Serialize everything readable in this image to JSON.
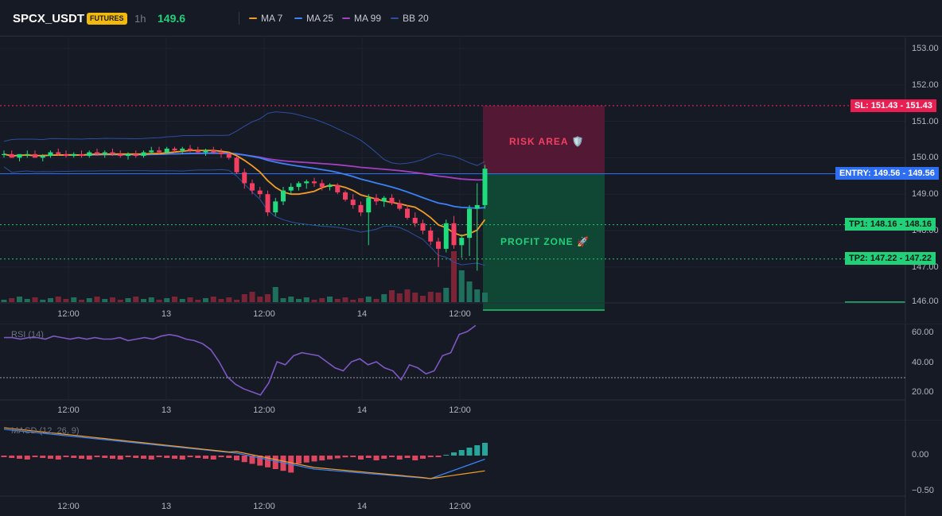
{
  "header": {
    "symbol": "SPCX_USDT",
    "badge": "FUTURES",
    "interval": "1h",
    "last_price": "149.6",
    "indicators": [
      {
        "label": "MA 7",
        "color": "#f39c25"
      },
      {
        "label": "MA 25",
        "color": "#3b82f6"
      },
      {
        "label": "MA 99",
        "color": "#a43fc1"
      },
      {
        "label": "BB 20",
        "color": "#2c4fa0"
      }
    ]
  },
  "colors": {
    "up": "#1fdc7c",
    "down": "#f23f62",
    "volume_up": "#1e6f5c",
    "volume_down": "#7a2436",
    "sl": "#ff1f5a",
    "entry": "#2e6ef2",
    "tp": "#22c76a",
    "rsi": "#7e57c2"
  },
  "price_pane": {
    "y_axis": [
      "153.00",
      "152.00",
      "151.00",
      "150.00",
      "149.00",
      "148.00",
      "147.00",
      "146.00"
    ],
    "sl_tag": "SL: 151.43 - 151.43",
    "entry_tag": "ENTRY: 149.56 - 149.56",
    "tp1_tag": "TP1: 148.16 - 148.16",
    "tp2_tag": "TP2: 147.22 - 147.22",
    "risk_label": "RISK AREA 🛡️",
    "profit_label": "PROFIT ZONE 🚀"
  },
  "time_axis": [
    "12:00",
    "13",
    "12:00",
    "14",
    "12:00"
  ],
  "rsi_pane": {
    "title": "RSI (14)",
    "y_axis": [
      "60.00",
      "40.00",
      "20.00"
    ]
  },
  "macd_pane": {
    "title": "MACD (12, 26, 9)",
    "y_axis": [
      "0.00",
      "−0.50"
    ]
  },
  "chart_data": {
    "type": "line",
    "ylim": [
      146,
      153.2
    ],
    "candles": [
      {
        "o": 150.1,
        "h": 150.2,
        "l": 150.0,
        "c": 150.1
      },
      {
        "o": 150.1,
        "h": 150.2,
        "l": 150.0,
        "c": 150.0
      },
      {
        "o": 150.0,
        "h": 150.1,
        "l": 149.9,
        "c": 150.1
      },
      {
        "o": 150.1,
        "h": 150.2,
        "l": 150.0,
        "c": 150.1
      },
      {
        "o": 150.1,
        "h": 150.2,
        "l": 150.0,
        "c": 150.0
      },
      {
        "o": 150.0,
        "h": 150.1,
        "l": 149.9,
        "c": 150.05
      },
      {
        "o": 150.05,
        "h": 150.2,
        "l": 150.0,
        "c": 150.15
      },
      {
        "o": 150.15,
        "h": 150.25,
        "l": 150.05,
        "c": 150.1
      },
      {
        "o": 150.1,
        "h": 150.2,
        "l": 150.0,
        "c": 150.05
      },
      {
        "o": 150.05,
        "h": 150.15,
        "l": 150.0,
        "c": 150.1
      },
      {
        "o": 150.1,
        "h": 150.2,
        "l": 150.0,
        "c": 150.05
      },
      {
        "o": 150.05,
        "h": 150.2,
        "l": 150.0,
        "c": 150.15
      },
      {
        "o": 150.15,
        "h": 150.25,
        "l": 150.05,
        "c": 150.1
      },
      {
        "o": 150.1,
        "h": 150.2,
        "l": 150.0,
        "c": 150.15
      },
      {
        "o": 150.15,
        "h": 150.25,
        "l": 150.05,
        "c": 150.1
      },
      {
        "o": 150.1,
        "h": 150.2,
        "l": 150.0,
        "c": 150.05
      },
      {
        "o": 150.05,
        "h": 150.15,
        "l": 149.95,
        "c": 150.1
      },
      {
        "o": 150.1,
        "h": 150.2,
        "l": 150.0,
        "c": 150.05
      },
      {
        "o": 150.05,
        "h": 150.2,
        "l": 150.0,
        "c": 150.15
      },
      {
        "o": 150.15,
        "h": 150.3,
        "l": 150.1,
        "c": 150.2
      },
      {
        "o": 150.2,
        "h": 150.3,
        "l": 150.1,
        "c": 150.15
      },
      {
        "o": 150.15,
        "h": 150.3,
        "l": 150.1,
        "c": 150.25
      },
      {
        "o": 150.25,
        "h": 150.3,
        "l": 150.15,
        "c": 150.2
      },
      {
        "o": 150.2,
        "h": 150.3,
        "l": 150.1,
        "c": 150.25
      },
      {
        "o": 150.25,
        "h": 150.35,
        "l": 150.15,
        "c": 150.2
      },
      {
        "o": 150.2,
        "h": 150.3,
        "l": 150.1,
        "c": 150.15
      },
      {
        "o": 150.15,
        "h": 150.25,
        "l": 150.05,
        "c": 150.2
      },
      {
        "o": 150.2,
        "h": 150.3,
        "l": 150.1,
        "c": 150.15
      },
      {
        "o": 150.15,
        "h": 150.25,
        "l": 150.0,
        "c": 150.1
      },
      {
        "o": 150.1,
        "h": 150.15,
        "l": 149.95,
        "c": 150.0
      },
      {
        "o": 150.0,
        "h": 150.05,
        "l": 149.55,
        "c": 149.6
      },
      {
        "o": 149.6,
        "h": 149.7,
        "l": 149.15,
        "c": 149.3
      },
      {
        "o": 149.3,
        "h": 149.4,
        "l": 149.0,
        "c": 149.1
      },
      {
        "o": 149.1,
        "h": 149.2,
        "l": 148.9,
        "c": 149.0
      },
      {
        "o": 149.0,
        "h": 149.1,
        "l": 148.4,
        "c": 148.5
      },
      {
        "o": 148.5,
        "h": 148.9,
        "l": 148.4,
        "c": 148.8
      },
      {
        "o": 148.8,
        "h": 149.2,
        "l": 148.7,
        "c": 149.1
      },
      {
        "o": 149.1,
        "h": 149.3,
        "l": 149.0,
        "c": 149.2
      },
      {
        "o": 149.2,
        "h": 149.35,
        "l": 149.1,
        "c": 149.3
      },
      {
        "o": 149.3,
        "h": 149.4,
        "l": 149.15,
        "c": 149.35
      },
      {
        "o": 149.35,
        "h": 149.45,
        "l": 149.2,
        "c": 149.3
      },
      {
        "o": 149.3,
        "h": 149.4,
        "l": 149.1,
        "c": 149.2
      },
      {
        "o": 149.2,
        "h": 149.3,
        "l": 149.1,
        "c": 149.25
      },
      {
        "o": 149.25,
        "h": 149.3,
        "l": 149.0,
        "c": 149.05
      },
      {
        "o": 149.05,
        "h": 149.1,
        "l": 148.8,
        "c": 148.85
      },
      {
        "o": 148.85,
        "h": 149.0,
        "l": 148.6,
        "c": 148.7
      },
      {
        "o": 148.7,
        "h": 148.8,
        "l": 148.4,
        "c": 148.5
      },
      {
        "o": 148.5,
        "h": 149.0,
        "l": 147.6,
        "c": 148.9
      },
      {
        "o": 148.9,
        "h": 149.0,
        "l": 148.7,
        "c": 148.8
      },
      {
        "o": 148.8,
        "h": 148.95,
        "l": 148.65,
        "c": 148.9
      },
      {
        "o": 148.9,
        "h": 149.0,
        "l": 148.7,
        "c": 148.75
      },
      {
        "o": 148.75,
        "h": 148.85,
        "l": 148.55,
        "c": 148.6
      },
      {
        "o": 148.6,
        "h": 148.7,
        "l": 148.3,
        "c": 148.35
      },
      {
        "o": 148.35,
        "h": 148.5,
        "l": 148.1,
        "c": 148.2
      },
      {
        "o": 148.2,
        "h": 148.3,
        "l": 147.9,
        "c": 148.0
      },
      {
        "o": 148.0,
        "h": 148.1,
        "l": 147.6,
        "c": 147.7
      },
      {
        "o": 147.7,
        "h": 147.8,
        "l": 147.0,
        "c": 147.5
      },
      {
        "o": 147.5,
        "h": 148.3,
        "l": 147.4,
        "c": 148.2
      },
      {
        "o": 148.2,
        "h": 148.4,
        "l": 147.5,
        "c": 147.6
      },
      {
        "o": 147.6,
        "h": 147.9,
        "l": 147.25,
        "c": 147.8
      },
      {
        "o": 147.8,
        "h": 148.7,
        "l": 147.3,
        "c": 148.6
      },
      {
        "o": 148.6,
        "h": 149.3,
        "l": 146.9,
        "c": 148.7
      },
      {
        "o": 148.7,
        "h": 149.8,
        "l": 148.6,
        "c": 149.7
      }
    ]
  }
}
